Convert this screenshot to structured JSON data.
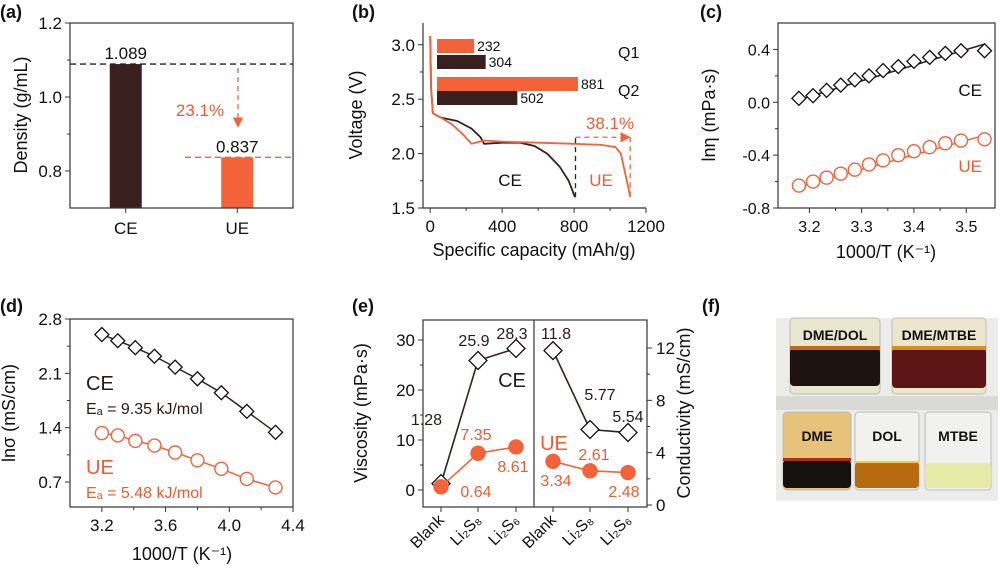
{
  "colors": {
    "CE": "#3a1f1f",
    "UE": "#f4623a",
    "UE_text": "#f05a30"
  },
  "chart_data": [
    {
      "panel_label": "(a)",
      "type": "bar",
      "categories": [
        "CE",
        "UE"
      ],
      "values": [
        1.089,
        0.837
      ],
      "value_labels": [
        "1.089",
        "0.837"
      ],
      "xlabel": "",
      "ylabel": "Density (g/mL)",
      "ylim": [
        0.7,
        1.2
      ],
      "yticks": [
        "0.8",
        "1.0",
        "1.2"
      ],
      "annotation": "23.1%"
    },
    {
      "panel_label": "(b)",
      "type": "line",
      "xlabel": "Specific capacity (mAh/g)",
      "ylabel": "Voltage (V)",
      "xlim": [
        -40,
        1200
      ],
      "ylim": [
        1.5,
        3.2
      ],
      "xticks": [
        "0",
        "400",
        "800",
        "1200"
      ],
      "yticks": [
        "1.5",
        "2.0",
        "2.5",
        "3.0"
      ],
      "series": [
        {
          "name": "CE",
          "points": [
            [
              0,
              3.08
            ],
            [
              5,
              2.6
            ],
            [
              15,
              2.37
            ],
            [
              60,
              2.33
            ],
            [
              150,
              2.3
            ],
            [
              230,
              2.23
            ],
            [
              280,
              2.15
            ],
            [
              300,
              2.09
            ],
            [
              400,
              2.1
            ],
            [
              500,
              2.1
            ],
            [
              580,
              2.07
            ],
            [
              650,
              2.0
            ],
            [
              720,
              1.88
            ],
            [
              770,
              1.75
            ],
            [
              805,
              1.6
            ]
          ]
        },
        {
          "name": "UE",
          "points": [
            [
              0,
              3.08
            ],
            [
              5,
              2.6
            ],
            [
              15,
              2.37
            ],
            [
              60,
              2.33
            ],
            [
              120,
              2.27
            ],
            [
              180,
              2.18
            ],
            [
              230,
              2.09
            ],
            [
              300,
              2.12
            ],
            [
              400,
              2.11
            ],
            [
              600,
              2.1
            ],
            [
              800,
              2.09
            ],
            [
              950,
              2.08
            ],
            [
              1030,
              2.06
            ],
            [
              1060,
              2.0
            ],
            [
              1080,
              1.85
            ],
            [
              1100,
              1.7
            ],
            [
              1112,
              1.6
            ]
          ]
        }
      ],
      "inset": {
        "type": "bar",
        "groups": [
          {
            "label": "Q1",
            "UE": 232,
            "CE": 304,
            "UE_label": "232",
            "CE_label": "304"
          },
          {
            "label": "Q2",
            "UE": 881,
            "CE": 502,
            "UE_label": "881",
            "CE_label": "502"
          }
        ]
      },
      "annotation": "38.1%",
      "series_labels": [
        "CE",
        "UE"
      ],
      "dashed_markers": [
        808,
        1112
      ]
    },
    {
      "panel_label": "(c)",
      "type": "scatter",
      "xlabel": "1000/T (K⁻¹)",
      "ylabel": "lnη (mPa·s)",
      "xlim": [
        3.14,
        3.555
      ],
      "ylim": [
        -0.8,
        0.6
      ],
      "xticks": [
        "3.2",
        "3.3",
        "3.4",
        "3.5"
      ],
      "yticks": [
        "-0.8",
        "-0.4",
        "0.0",
        "0.4"
      ],
      "x": [
        3.18,
        3.207,
        3.233,
        3.26,
        3.287,
        3.314,
        3.341,
        3.37,
        3.4,
        3.43,
        3.46,
        3.49,
        3.535
      ],
      "series": [
        {
          "name": "CE",
          "marker": "diamond",
          "values": [
            0.03,
            0.05,
            0.09,
            0.13,
            0.17,
            0.2,
            0.24,
            0.27,
            0.31,
            0.34,
            0.37,
            0.39,
            0.39
          ],
          "fit": [
            [
              3.18,
              0.02
            ],
            [
              3.535,
              0.44
            ]
          ]
        },
        {
          "name": "UE",
          "marker": "circle",
          "values": [
            -0.63,
            -0.6,
            -0.57,
            -0.54,
            -0.51,
            -0.47,
            -0.44,
            -0.4,
            -0.37,
            -0.34,
            -0.31,
            -0.29,
            -0.28
          ],
          "fit": [
            [
              3.18,
              -0.64
            ],
            [
              3.535,
              -0.25
            ]
          ]
        }
      ]
    },
    {
      "panel_label": "(d)",
      "type": "scatter",
      "xlabel": "1000/T (K⁻¹)",
      "ylabel": "lnσ (mS/cm)",
      "xlim": [
        3.0,
        4.4
      ],
      "ylim": [
        0.378,
        2.8
      ],
      "xticks": [
        "3.2",
        "3.6",
        "4.0",
        "4.4"
      ],
      "yticks": [
        "0.7",
        "1.4",
        "2.1",
        "2.8"
      ],
      "x": [
        3.2,
        3.3,
        3.41,
        3.53,
        3.66,
        3.8,
        3.95,
        4.11,
        4.29
      ],
      "series": [
        {
          "name": "CE",
          "marker": "diamond",
          "values": [
            2.6,
            2.52,
            2.43,
            2.32,
            2.18,
            2.03,
            1.85,
            1.61,
            1.34
          ],
          "ea": "Eₐ = 9.35 kJ/mol"
        },
        {
          "name": "UE",
          "marker": "circle",
          "values": [
            1.33,
            1.3,
            1.23,
            1.17,
            1.08,
            0.98,
            0.87,
            0.74,
            0.63
          ],
          "ea": "Eₐ = 5.48 kJ/mol"
        }
      ]
    },
    {
      "panel_label": "(e)",
      "type": "line",
      "categories": [
        "Blank",
        "Li₂S₈",
        "Li₂S₆"
      ],
      "left": {
        "ylabel": "Viscosity (mPa·s)",
        "ylim": [
          -3.4,
          34
        ],
        "yticks": [
          "0",
          "10",
          "20",
          "30"
        ],
        "series": [
          {
            "name": "CE",
            "values": [
              1.28,
              25.9,
              28.3
            ],
            "labels": [
              "1.28",
              "25.9",
              "28.3"
            ]
          },
          {
            "name": "UE",
            "values": [
              0.64,
              7.35,
              8.61
            ],
            "labels": [
              "0.64",
              "7.35",
              "8.61"
            ]
          }
        ]
      },
      "right": {
        "ylabel": "Conductivity (mS/cm)",
        "ylim": [
          -0.153,
          14.14
        ],
        "yticks": [
          "0",
          "4",
          "8",
          "12"
        ],
        "series": [
          {
            "name": "CE",
            "values": [
              11.8,
              5.77,
              5.54
            ],
            "labels": [
              "11.8",
              "5.77",
              "5.54"
            ]
          },
          {
            "name": "UE",
            "values": [
              3.34,
              2.61,
              2.48
            ],
            "labels": [
              "3.34",
              "2.61",
              "2.48"
            ]
          }
        ]
      },
      "series_labels": [
        "CE",
        "UE"
      ]
    }
  ],
  "photo": {
    "panel_label": "(f)",
    "vials": [
      "DME/DOL",
      "DME/MTBE",
      "DME",
      "DOL",
      "MTBE"
    ]
  }
}
